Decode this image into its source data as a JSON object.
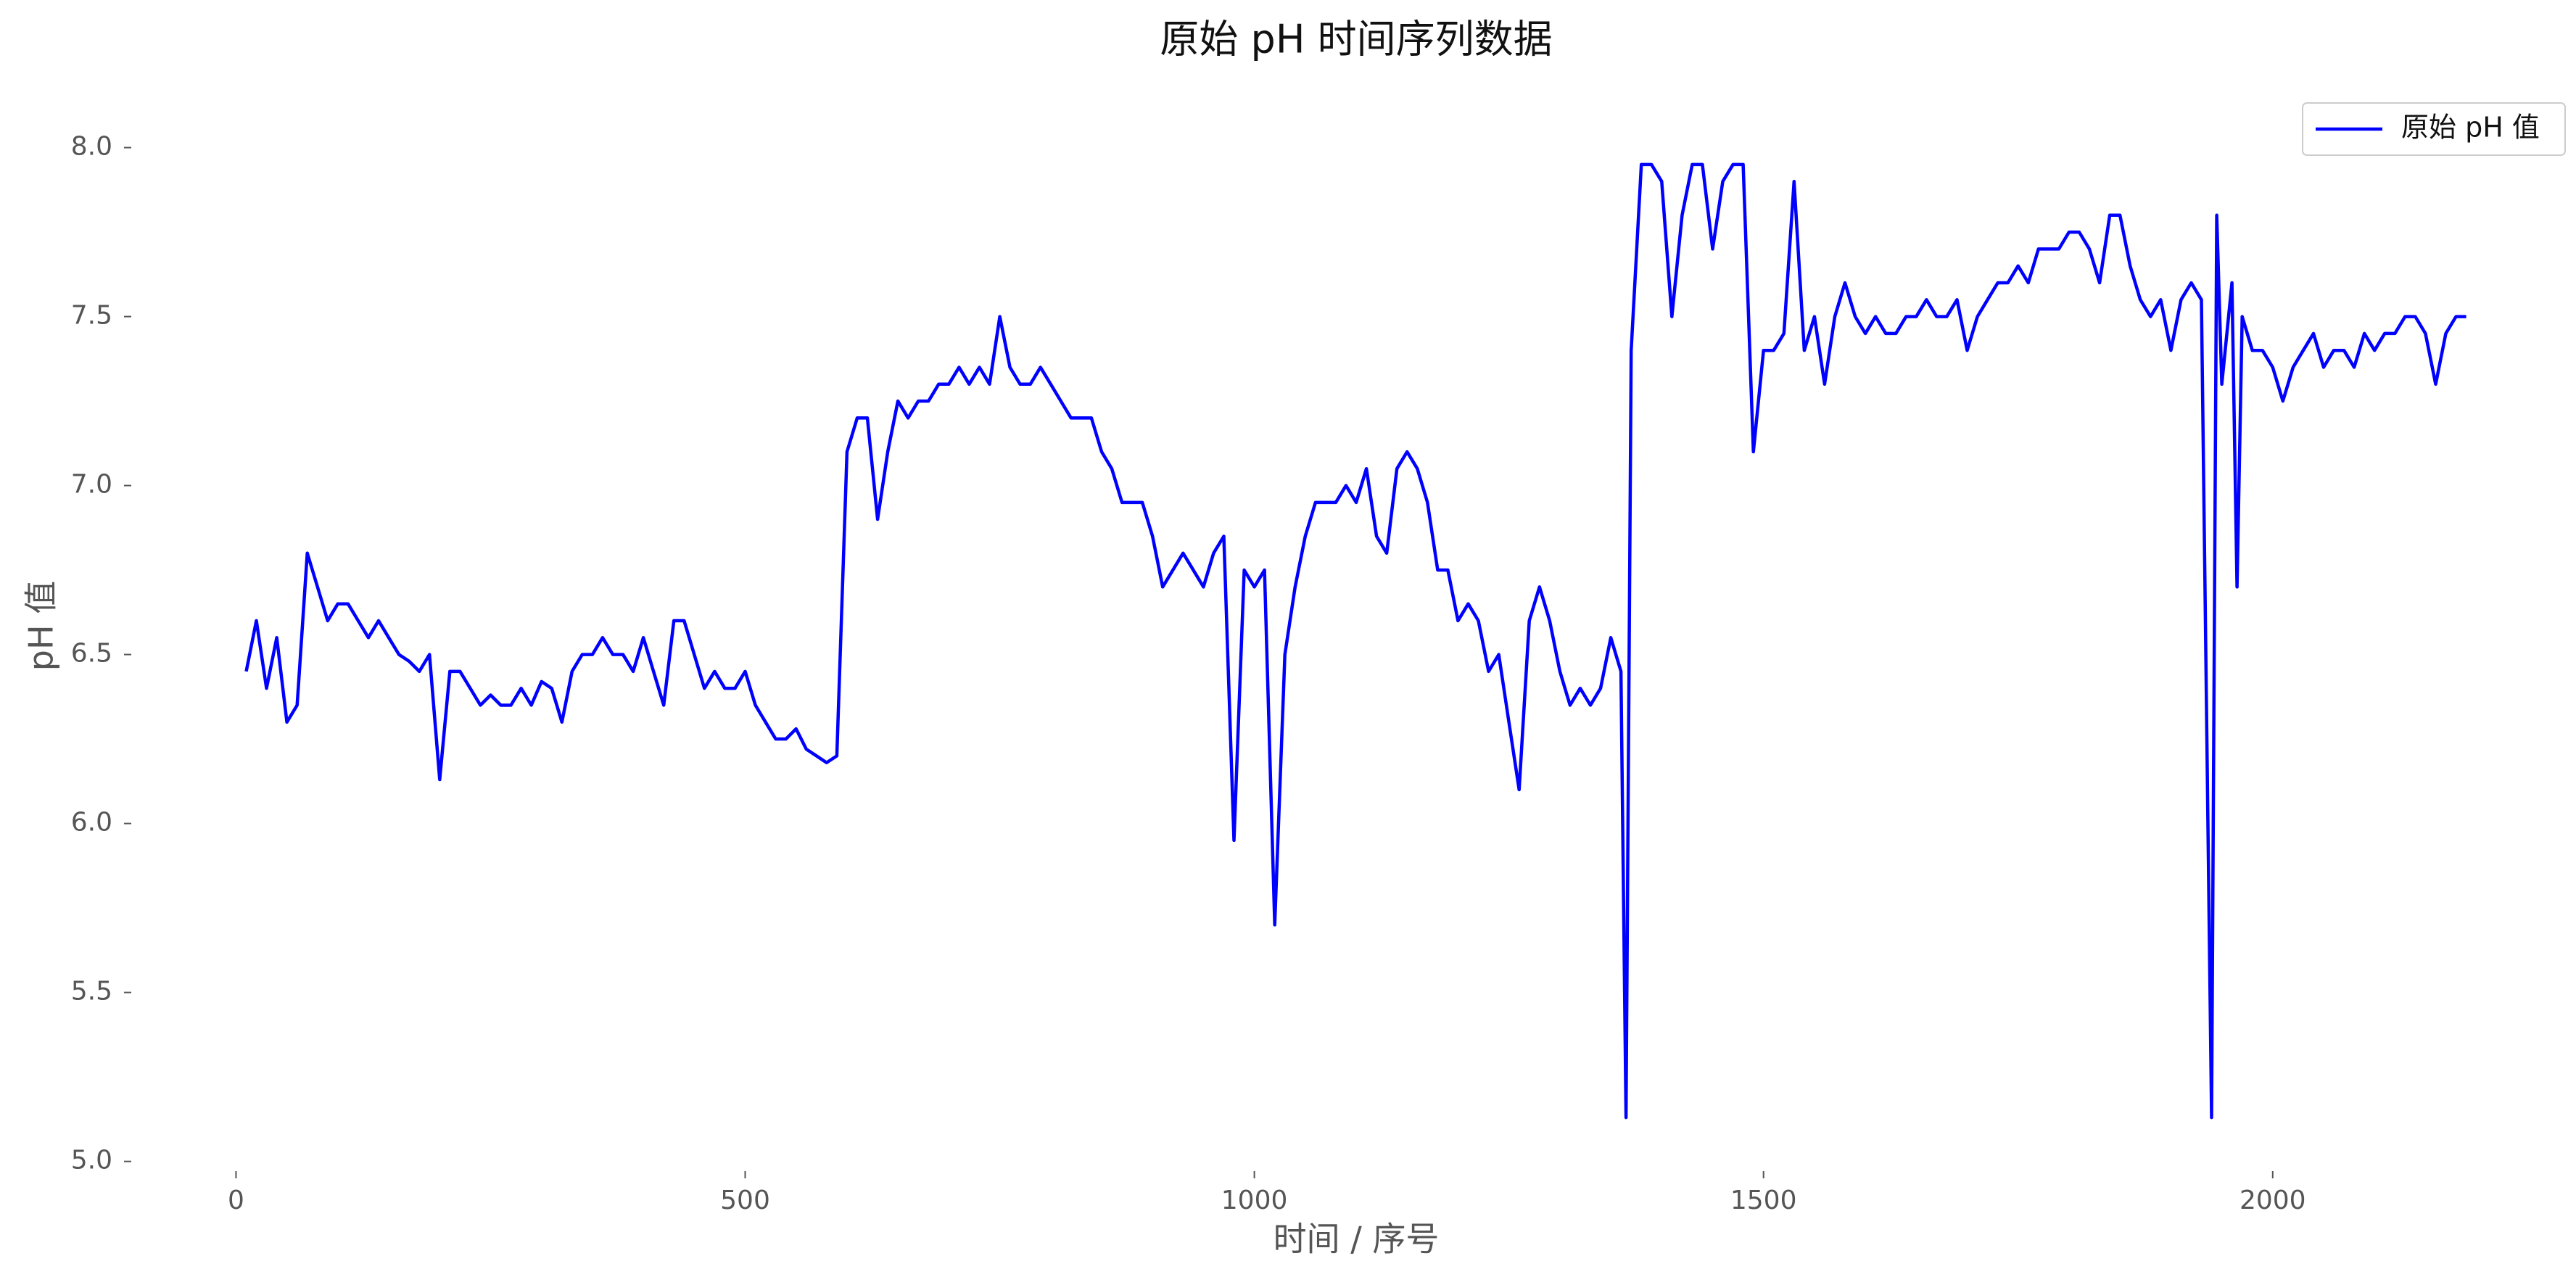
{
  "chart_data": {
    "type": "line",
    "title": "原始 pH 时间序列数据",
    "xlabel": "时间 / 序号",
    "ylabel": "pH 值",
    "x": [
      10,
      20,
      30,
      40,
      50,
      60,
      70,
      80,
      90,
      100,
      110,
      120,
      130,
      140,
      150,
      160,
      170,
      180,
      190,
      200,
      210,
      220,
      230,
      240,
      250,
      260,
      270,
      280,
      290,
      300,
      310,
      320,
      330,
      340,
      350,
      360,
      370,
      380,
      390,
      400,
      410,
      420,
      430,
      440,
      450,
      460,
      470,
      480,
      490,
      500,
      510,
      520,
      530,
      540,
      550,
      560,
      570,
      580,
      590,
      600,
      610,
      620,
      630,
      640,
      650,
      660,
      670,
      680,
      690,
      700,
      710,
      720,
      730,
      740,
      750,
      760,
      770,
      780,
      790,
      800,
      810,
      820,
      830,
      840,
      850,
      860,
      870,
      880,
      890,
      900,
      910,
      920,
      930,
      940,
      950,
      960,
      970,
      980,
      990,
      1000,
      1010,
      1020,
      1030,
      1040,
      1050,
      1060,
      1070,
      1080,
      1090,
      1100,
      1110,
      1120,
      1130,
      1140,
      1150,
      1160,
      1170,
      1180,
      1190,
      1200,
      1210,
      1220,
      1230,
      1240,
      1250,
      1260,
      1270,
      1280,
      1290,
      1300,
      1310,
      1320,
      1330,
      1340,
      1350,
      1360,
      1365,
      1370,
      1380,
      1390,
      1400,
      1410,
      1420,
      1430,
      1440,
      1450,
      1460,
      1470,
      1480,
      1490,
      1500,
      1510,
      1520,
      1530,
      1540,
      1550,
      1560,
      1570,
      1580,
      1590,
      1600,
      1610,
      1620,
      1630,
      1640,
      1650,
      1660,
      1670,
      1680,
      1690,
      1700,
      1710,
      1720,
      1730,
      1740,
      1750,
      1760,
      1770,
      1780,
      1790,
      1800,
      1810,
      1820,
      1830,
      1840,
      1850,
      1860,
      1870,
      1880,
      1890,
      1900,
      1910,
      1920,
      1930,
      1940,
      1945,
      1950,
      1960,
      1965,
      1970,
      1980,
      1990,
      2000,
      2010,
      2020,
      2030,
      2040,
      2050,
      2060,
      2070,
      2080,
      2090,
      2100,
      2110,
      2120,
      2130,
      2140,
      2150,
      2160,
      2170,
      2180,
      2190
    ],
    "series": [
      {
        "name": "原始 pH 值",
        "color": "#0000ff",
        "values": [
          6.45,
          6.6,
          6.4,
          6.55,
          6.3,
          6.35,
          6.8,
          6.7,
          6.6,
          6.65,
          6.65,
          6.6,
          6.55,
          6.6,
          6.55,
          6.5,
          6.48,
          6.45,
          6.5,
          6.13,
          6.45,
          6.45,
          6.4,
          6.35,
          6.38,
          6.35,
          6.35,
          6.4,
          6.35,
          6.42,
          6.4,
          6.3,
          6.45,
          6.5,
          6.5,
          6.55,
          6.5,
          6.5,
          6.45,
          6.55,
          6.45,
          6.35,
          6.6,
          6.6,
          6.5,
          6.4,
          6.45,
          6.4,
          6.4,
          6.45,
          6.35,
          6.3,
          6.25,
          6.25,
          6.28,
          6.22,
          6.2,
          6.18,
          6.2,
          7.1,
          7.2,
          7.2,
          6.9,
          7.1,
          7.25,
          7.2,
          7.25,
          7.25,
          7.3,
          7.3,
          7.35,
          7.3,
          7.35,
          7.3,
          7.5,
          7.35,
          7.3,
          7.3,
          7.35,
          7.3,
          7.25,
          7.2,
          7.2,
          7.2,
          7.1,
          7.05,
          6.95,
          6.95,
          6.95,
          6.85,
          6.7,
          6.75,
          6.8,
          6.75,
          6.7,
          6.8,
          6.85,
          5.95,
          6.75,
          6.7,
          6.75,
          5.7,
          6.5,
          6.7,
          6.85,
          6.95,
          6.95,
          6.95,
          7.0,
          6.95,
          7.05,
          6.85,
          6.8,
          7.05,
          7.1,
          7.05,
          6.95,
          6.75,
          6.75,
          6.6,
          6.65,
          6.6,
          6.45,
          6.5,
          6.3,
          6.1,
          6.6,
          6.7,
          6.6,
          6.45,
          6.35,
          6.4,
          6.35,
          6.4,
          6.55,
          6.45,
          5.13,
          7.4,
          7.95,
          7.95,
          7.9,
          7.5,
          7.8,
          7.95,
          7.95,
          7.7,
          7.9,
          7.95,
          7.95,
          7.1,
          7.4,
          7.4,
          7.45,
          7.9,
          7.4,
          7.5,
          7.3,
          7.5,
          7.6,
          7.5,
          7.45,
          7.5,
          7.45,
          7.45,
          7.5,
          7.5,
          7.55,
          7.5,
          7.5,
          7.55,
          7.4,
          7.5,
          7.55,
          7.6,
          7.6,
          7.65,
          7.6,
          7.7,
          7.7,
          7.7,
          7.75,
          7.75,
          7.7,
          7.6,
          7.8,
          7.8,
          7.65,
          7.55,
          7.5,
          7.55,
          7.4,
          7.55,
          7.6,
          7.55,
          5.13,
          7.8,
          7.3,
          7.6,
          6.7,
          7.5,
          7.4,
          7.4,
          7.35,
          7.25,
          7.35,
          7.4,
          7.45,
          7.35,
          7.4,
          7.4,
          7.35,
          7.45,
          7.4,
          7.45,
          7.45,
          7.5,
          7.5,
          7.45,
          7.3,
          7.45,
          7.5,
          7.5
        ]
      }
    ],
    "xlim": [
      -100,
      2290
    ],
    "ylim": [
      4.98,
      8.19
    ],
    "xticks": [
      0,
      500,
      1000,
      1500,
      2000
    ],
    "yticks": [
      {
        "value": 5,
        "label": "5.0"
      },
      5.5,
      {
        "value": 6,
        "label": "6.0"
      },
      6.5,
      {
        "value": 7,
        "label": "7.0"
      },
      7.5,
      {
        "value": 8,
        "label": "8.0"
      }
    ],
    "grid": false,
    "legend": "upper right"
  }
}
